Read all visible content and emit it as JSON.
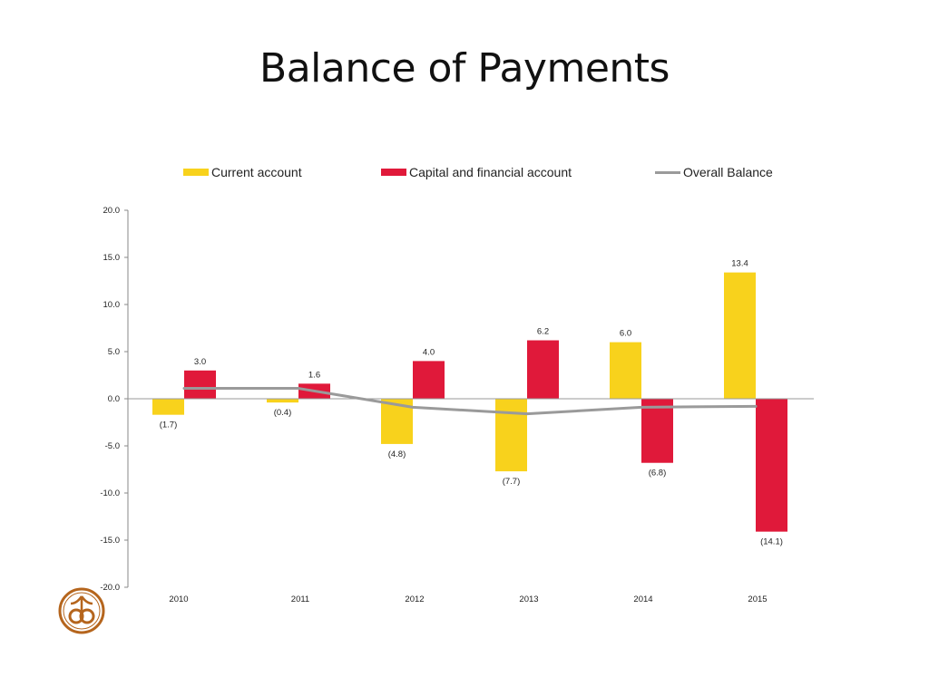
{
  "slide": {
    "title": "Balance of Payments"
  },
  "legend": {
    "items": [
      {
        "label": "Current account",
        "color": "#F8D21C",
        "kind": "bar"
      },
      {
        "label": "Capital and financial account",
        "color": "#E0193A",
        "kind": "bar"
      },
      {
        "label": "Overall Balance",
        "color": "#9A9A9A",
        "kind": "line"
      }
    ]
  },
  "logo": {
    "icon": "organization-emblem-icon",
    "color": "#B5651D"
  },
  "chart_data": {
    "type": "bar",
    "categories": [
      "2010",
      "2011",
      "2012",
      "2013",
      "2014",
      "2015"
    ],
    "series": [
      {
        "name": "Current account",
        "type": "bar",
        "color": "#F8D21C",
        "values": [
          -1.7,
          -0.4,
          -4.8,
          -7.7,
          6.0,
          13.4
        ],
        "labels": [
          "(1.7)",
          "(0.4)",
          "(4.8)",
          "(7.7)",
          "6.0",
          "13.4"
        ]
      },
      {
        "name": "Capital and financial account",
        "type": "bar",
        "color": "#E0193A",
        "values": [
          3.0,
          1.6,
          4.0,
          6.2,
          -6.8,
          -14.1
        ],
        "labels": [
          "3.0",
          "1.6",
          "4.0",
          "6.2",
          "(6.8)",
          "(14.1)"
        ]
      },
      {
        "name": "Overall Balance",
        "type": "line",
        "color": "#9A9A9A",
        "values": [
          1.1,
          1.1,
          -0.9,
          -1.6,
          -0.9,
          -0.8
        ]
      }
    ],
    "yticks": [
      "20.0",
      "15.0",
      "10.0",
      "5.0",
      "0.0",
      "-5.0",
      "-10.0",
      "-15.0",
      "-20.0"
    ],
    "ytick_values": [
      20,
      15,
      10,
      5,
      0,
      -5,
      -10,
      -15,
      -20
    ],
    "ylim": [
      -20,
      20
    ],
    "legend_position": "top",
    "grid": false
  }
}
